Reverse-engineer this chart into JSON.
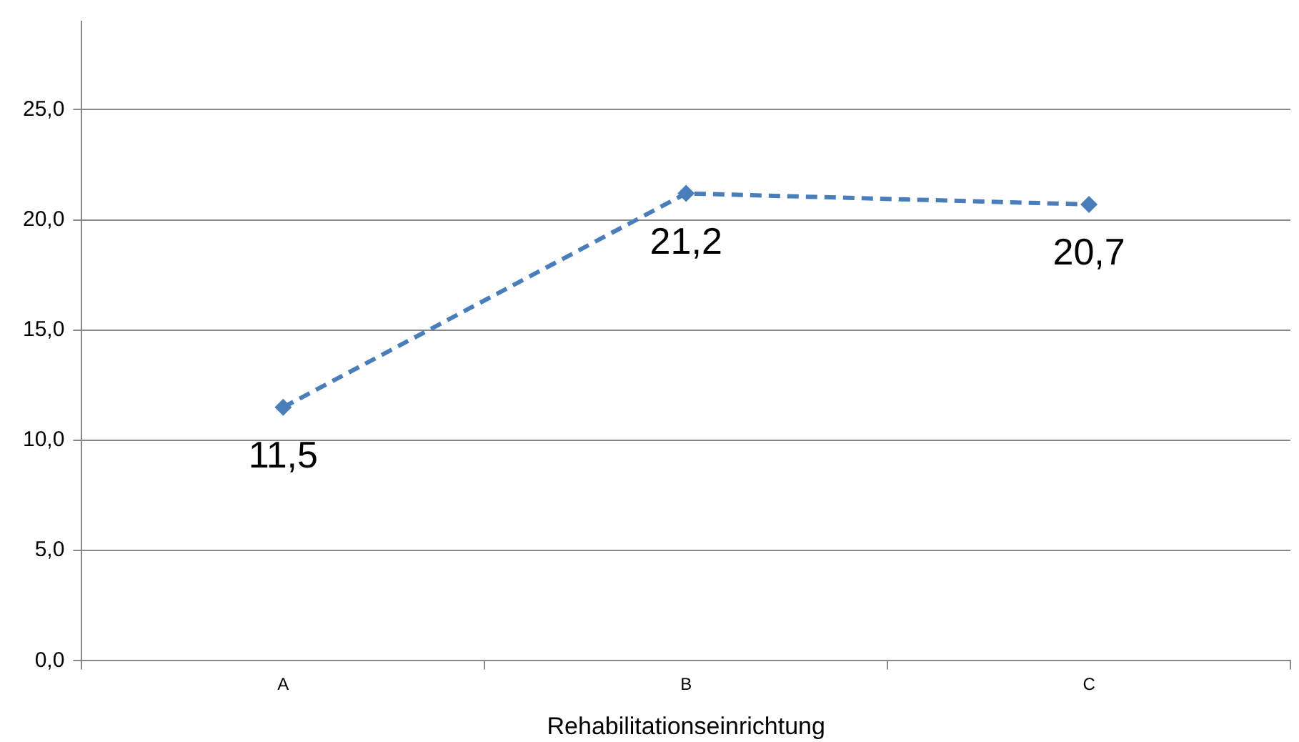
{
  "chart_data": {
    "type": "line",
    "xlabel": "Rehabilitationseinrichtung",
    "categories": [
      "A",
      "B",
      "C"
    ],
    "series": [
      {
        "color": "#4a7ebb",
        "values": [
          11.5,
          21.2,
          20.7
        ],
        "value_labels": [
          "11,5",
          "21,2",
          "20,7"
        ]
      }
    ],
    "ylim": [
      0,
      29
    ],
    "yticks": [
      {
        "value": 0,
        "label": "0,0"
      },
      {
        "value": 5,
        "label": "5,0"
      },
      {
        "value": 10,
        "label": "10,0"
      },
      {
        "value": 15,
        "label": "15,0"
      },
      {
        "value": 20,
        "label": "20,0"
      },
      {
        "value": 25,
        "label": "25,0"
      }
    ],
    "grid": "y",
    "legend": false,
    "marker": "diamond",
    "line_style": "dashed"
  }
}
